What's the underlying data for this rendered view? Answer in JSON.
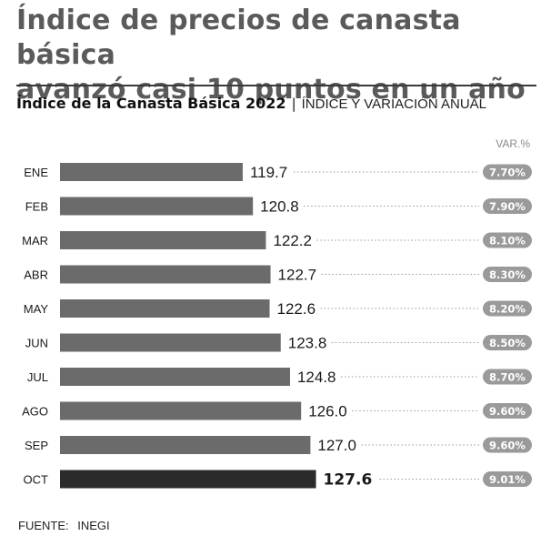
{
  "headline": {
    "line1": "Índice de precios de canasta básica",
    "line2": "avanzó casi 10 puntos en un año"
  },
  "subtitle": {
    "title": "Índice de la Canasta Básica 2022",
    "separator": "|",
    "descriptor": "ÍNDICE Y VARIACIÓN ANUAL"
  },
  "chart_data": {
    "type": "bar",
    "orientation": "horizontal",
    "title": "Índice de la Canasta Básica 2022",
    "categories": [
      "ENE",
      "FEB",
      "MAR",
      "ABR",
      "MAY",
      "JUN",
      "JUL",
      "AGO",
      "SEP",
      "OCT"
    ],
    "values": [
      119.7,
      120.8,
      122.2,
      122.7,
      122.6,
      123.8,
      124.8,
      126.0,
      127.0,
      127.6
    ],
    "value_labels": [
      "119.7",
      "120.8",
      "122.2",
      "122.7",
      "122.6",
      "123.8",
      "124.8",
      "126.0",
      "127.0",
      "127.6"
    ],
    "variation_header": "VAR.%",
    "variation": [
      "7.70%",
      "7.90%",
      "8.10%",
      "8.30%",
      "8.20%",
      "8.50%",
      "8.70%",
      "9.60%",
      "9.60%",
      "9.01%"
    ],
    "highlight_category": "OCT",
    "xlim": [
      100,
      130
    ],
    "colors": {
      "bar": "#6b6b6b",
      "highlight_bar": "#2b2b2b",
      "badge": "#9a9a9a",
      "badge_text": "#ffffff",
      "dots": "#9a9a9a"
    }
  },
  "source": {
    "label": "FUENTE:",
    "value": "INEGI"
  }
}
